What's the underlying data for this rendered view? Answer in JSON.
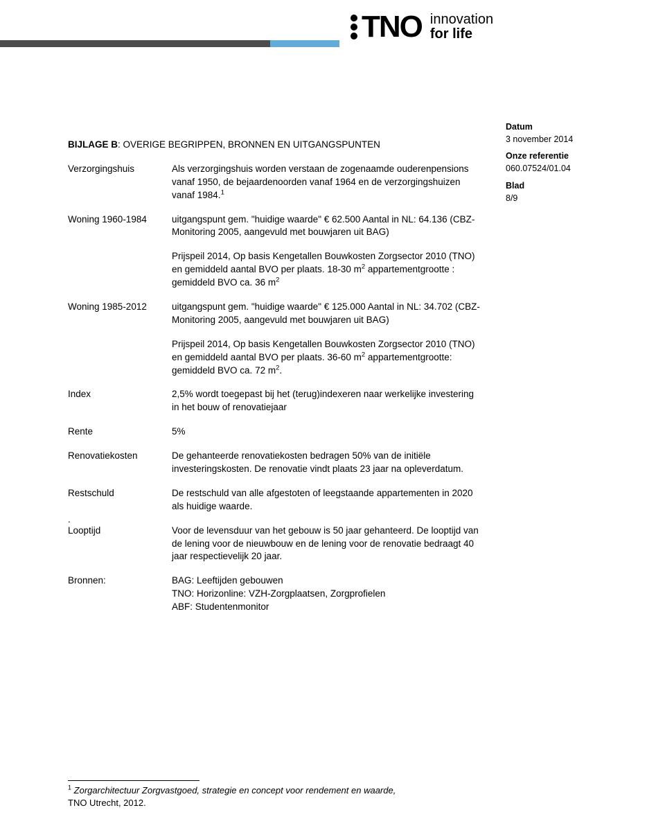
{
  "logo": {
    "wordmark": "TNO",
    "tagline1": "innovation",
    "tagline2": "for life"
  },
  "meta": {
    "datum_label": "Datum",
    "datum_value": "3 november 2014",
    "ref_label": "Onze referentie",
    "ref_value": "060.07524/01.04",
    "blad_label": "Blad",
    "blad_value": "8/9"
  },
  "heading_prefix": "BIJLAGE B",
  "heading_rest": ": OVERIGE BEGRIPPEN, BRONNEN EN UITGANGSPUNTEN",
  "entries": {
    "verzorgingshuis": {
      "term": "Verzorgingshuis",
      "def": "Als verzorgingshuis worden verstaan de zogenaamde ouderenpensions vanaf 1950, de bejaardenoorden vanaf 1964 en de verzorgingshuizen vanaf 1984."
    },
    "woning1": {
      "term": "Woning 1960-1984",
      "p1": "uitgangspunt gem. \"huidige waarde\" € 62.500 Aantal in NL: 64.136 (CBZ-Monitoring 2005, aangevuld met bouwjaren uit BAG)",
      "p2a": "Prijspeil 2014, Op basis Kengetallen Bouwkosten Zorgsector 2010 (TNO) en gemiddeld aantal BVO per plaats. 18-30 m",
      "p2b": " appartementgrootte : gemiddeld BVO ca. 36 m"
    },
    "woning2": {
      "term": "Woning 1985-2012",
      "p1": "uitgangspunt gem. \"huidige waarde\" € 125.000 Aantal in NL: 34.702 (CBZ-Monitoring 2005, aangevuld met bouwjaren uit BAG)",
      "p2a": "Prijspeil 2014, Op basis Kengetallen Bouwkosten Zorgsector 2010 (TNO) en gemiddeld aantal BVO per plaats. 36-60 m",
      "p2b": " appartementgrootte: gemiddeld BVO ca. 72 m",
      "p2c": "."
    },
    "index": {
      "term": "Index",
      "def": "2,5% wordt toegepast bij het (terug)indexeren naar werkelijke investering in het bouw of renovatiejaar"
    },
    "rente": {
      "term": "Rente",
      "def": "5%"
    },
    "renovatie": {
      "term": "Renovatiekosten",
      "def": "De gehanteerde renovatiekosten bedragen 50% van de initiële investeringskosten. De renovatie vindt plaats 23 jaar na opleverdatum."
    },
    "restschuld": {
      "term": "Restschuld",
      "def": "De restschuld van alle afgestoten of leegstaande appartementen in 2020 als huidige waarde."
    },
    "looptijd": {
      "term": "Looptijd",
      "def": "Voor de levensduur van het gebouw is 50 jaar gehanteerd. De looptijd van de lening voor de nieuwbouw en de lening voor de renovatie bedraagt 40 jaar respectievelijk 20 jaar."
    },
    "bronnen": {
      "term": "Bronnen:",
      "l1": "BAG: Leeftijden gebouwen",
      "l2": "TNO: Horizonline: VZH-Zorgplaatsen, Zorgprofielen",
      "l3": "ABF: Studentenmonitor"
    }
  },
  "period": ".",
  "footnote": {
    "num": "1",
    "italic": " Zorgarchitectuur Zorgvastgoed, strategie en concept voor rendement en waarde,",
    "tail": "TNO Utrecht, 2012."
  },
  "sup1": "1",
  "sup2": "2"
}
